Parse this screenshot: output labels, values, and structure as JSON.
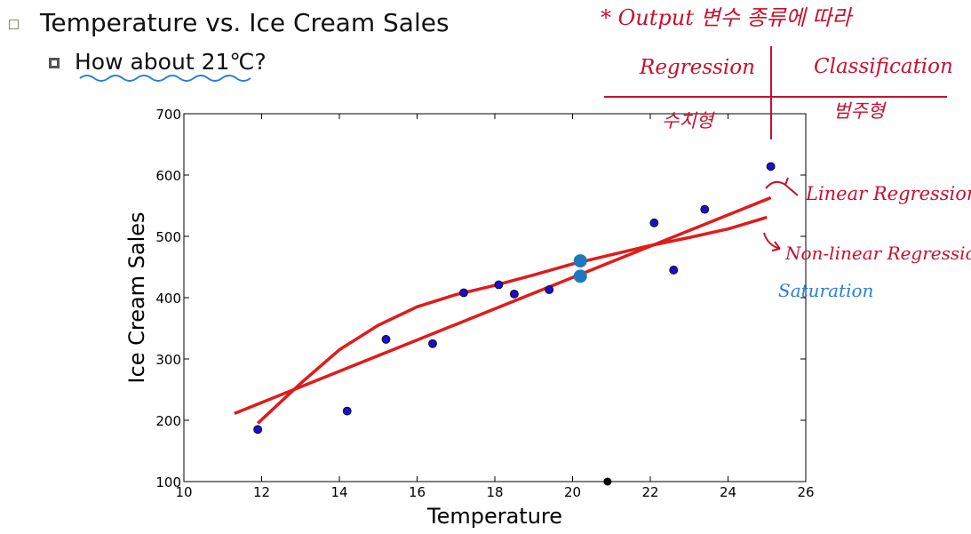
{
  "slide": {
    "title": "Temperature vs. Ice Cream Sales",
    "question": "How about 21℃?"
  },
  "annotations": {
    "heading": "* Output 변수 종류에 따라",
    "regression": "Regression",
    "classification": "Classification",
    "regression_type": "수치형",
    "classification_type": "범주형",
    "linear": "Linear Regression",
    "nonlinear": "Non-linear Regression",
    "saturation": "Saturation",
    "colors": {
      "ink_red": "#c8102e",
      "ink_blue": "#2a7fd4"
    }
  },
  "chart_data": {
    "type": "scatter",
    "xlabel": "Temperature",
    "ylabel": "Ice Cream Sales",
    "xlim": [
      10,
      26
    ],
    "ylim": [
      100,
      700
    ],
    "xticks": [
      10,
      12,
      14,
      16,
      18,
      20,
      22,
      24,
      26
    ],
    "yticks": [
      100,
      200,
      300,
      400,
      500,
      600,
      700
    ],
    "grid": false,
    "points": [
      {
        "x": 11.9,
        "y": 185
      },
      {
        "x": 14.2,
        "y": 215
      },
      {
        "x": 15.2,
        "y": 332
      },
      {
        "x": 16.4,
        "y": 325
      },
      {
        "x": 17.2,
        "y": 408
      },
      {
        "x": 18.1,
        "y": 421
      },
      {
        "x": 18.5,
        "y": 406
      },
      {
        "x": 19.4,
        "y": 413
      },
      {
        "x": 22.1,
        "y": 522
      },
      {
        "x": 22.6,
        "y": 445
      },
      {
        "x": 23.4,
        "y": 544
      },
      {
        "x": 25.1,
        "y": 614
      }
    ],
    "predictions": [
      {
        "x": 20.2,
        "y": 460
      },
      {
        "x": 20.2,
        "y": 435
      }
    ],
    "query_x": 20.9,
    "linear_fit": [
      [
        11.3,
        211
      ],
      [
        25.1,
        563
      ]
    ],
    "nonlinear_fit": [
      [
        11.9,
        195
      ],
      [
        13.0,
        260
      ],
      [
        14.0,
        315
      ],
      [
        15.0,
        355
      ],
      [
        16.0,
        385
      ],
      [
        17.0,
        405
      ],
      [
        18.0,
        420
      ],
      [
        19.0,
        437
      ],
      [
        20.0,
        455
      ],
      [
        21.0,
        470
      ],
      [
        22.0,
        485
      ],
      [
        23.0,
        498
      ],
      [
        24.0,
        512
      ],
      [
        25.0,
        531
      ]
    ],
    "colors": {
      "points": "#1a10c8",
      "predictions": "#1f77c0",
      "fit": "#e01b1b"
    }
  }
}
